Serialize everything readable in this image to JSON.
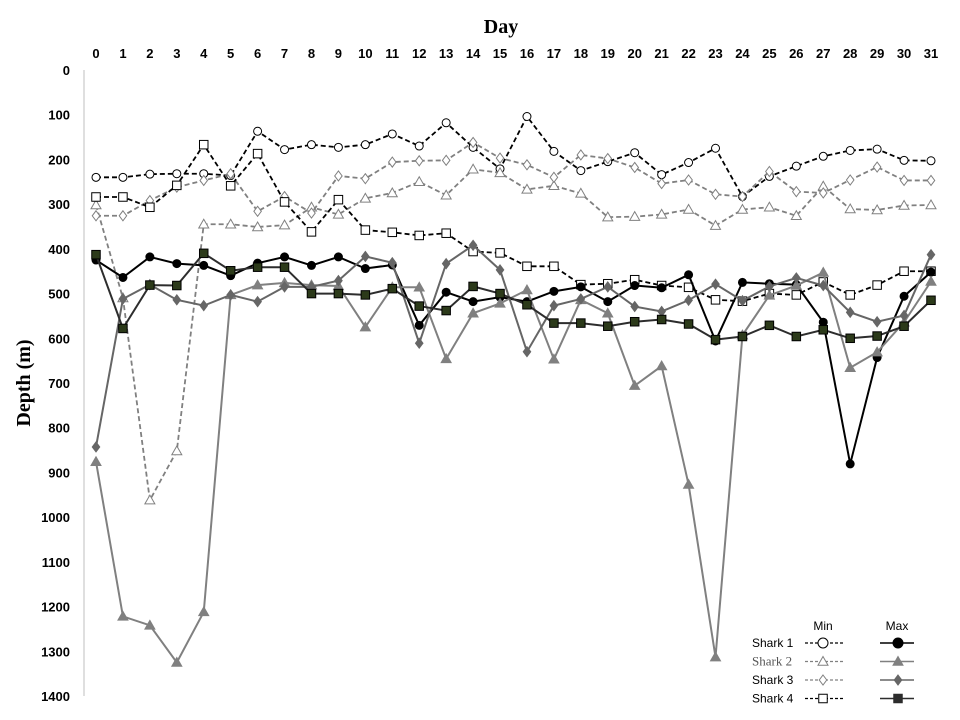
{
  "chart_data": {
    "type": "line",
    "title": "",
    "xlabel": "Day",
    "ylabel": "Depth (m)",
    "x": [
      0,
      1,
      2,
      3,
      4,
      5,
      6,
      7,
      8,
      9,
      10,
      11,
      12,
      13,
      14,
      15,
      16,
      17,
      18,
      19,
      20,
      21,
      22,
      23,
      24,
      25,
      26,
      27,
      28,
      29,
      30,
      31
    ],
    "xlim": [
      0,
      31
    ],
    "ylim": [
      0,
      1400
    ],
    "y_inverted": true,
    "y_ticks": [
      0,
      100,
      200,
      300,
      400,
      500,
      600,
      700,
      800,
      900,
      1000,
      1100,
      1200,
      1300,
      1400
    ],
    "grid": false,
    "legend_position": "bottom-right",
    "legend_headers": {
      "min": "Min",
      "max": "Max"
    },
    "series": [
      {
        "name": "Shark 1",
        "stat": "Min",
        "line": "dashed",
        "color": "#000000",
        "marker": "circle",
        "fill": "#ffffff",
        "values": [
          240,
          240,
          233,
          232,
          232,
          236,
          137,
          178,
          167,
          173,
          167,
          143,
          170,
          118,
          173,
          221,
          104,
          182,
          225,
          205,
          185,
          234,
          207,
          175,
          283,
          238,
          215,
          193,
          180,
          177,
          202,
          203
        ]
      },
      {
        "name": "Shark 2",
        "stat": "Min",
        "line": "dashed",
        "color": "#808080",
        "marker": "triangle",
        "fill": "#ffffff",
        "values": [
          302,
          510,
          962,
          852,
          345,
          345,
          351,
          347,
          307,
          323,
          287,
          275,
          250,
          280,
          222,
          230,
          267,
          259,
          276,
          329,
          328,
          323,
          312,
          348,
          312,
          307,
          326,
          260,
          311,
          313,
          303,
          302
        ]
      },
      {
        "name": "Shark 3",
        "stat": "Min",
        "line": "dashed",
        "color": "#808080",
        "marker": "diamond",
        "fill": "#ffffff",
        "values": [
          326,
          326,
          292,
          262,
          247,
          232,
          316,
          283,
          320,
          237,
          243,
          206,
          203,
          202,
          162,
          197,
          212,
          240,
          190,
          198,
          218,
          254,
          246,
          278,
          283,
          227,
          272,
          275,
          246,
          217,
          247,
          247
        ]
      },
      {
        "name": "Shark 4",
        "stat": "Min",
        "line": "dashed",
        "color": "#000000",
        "marker": "square",
        "fill": "#ffffff",
        "values": [
          284,
          284,
          307,
          258,
          167,
          259,
          187,
          295,
          362,
          290,
          358,
          363,
          370,
          365,
          406,
          409,
          439,
          439,
          480,
          478,
          469,
          482,
          486,
          514,
          517,
          500,
          503,
          474,
          503,
          481,
          450,
          450
        ]
      },
      {
        "name": "Shark 1",
        "stat": "Max",
        "line": "solid",
        "color": "#000000",
        "marker": "circle",
        "fill": "#000000",
        "values": [
          425,
          464,
          418,
          433,
          437,
          460,
          432,
          418,
          437,
          418,
          444,
          436,
          571,
          497,
          518,
          508,
          518,
          495,
          485,
          518,
          482,
          487,
          458,
          606,
          475,
          478,
          480,
          564,
          881,
          643,
          506,
          452
        ]
      },
      {
        "name": "Shark 2",
        "stat": "Max",
        "line": "solid",
        "color": "#808080",
        "marker": "triangle",
        "fill": "#808080",
        "values": [
          876,
          1222,
          1242,
          1325,
          1212,
          503,
          481,
          476,
          481,
          483,
          575,
          486,
          486,
          646,
          544,
          522,
          492,
          647,
          514,
          544,
          706,
          662,
          927,
          1313,
          593,
          504,
          482,
          453,
          666,
          631,
          564,
          473
        ]
      },
      {
        "name": "Shark 3",
        "stat": "Max",
        "line": "solid",
        "color": "#666666",
        "marker": "diamond",
        "fill": "#666666",
        "values": [
          843,
          512,
          480,
          514,
          527,
          503,
          518,
          485,
          485,
          471,
          417,
          431,
          611,
          433,
          392,
          447,
          630,
          527,
          512,
          485,
          529,
          540,
          515,
          479,
          516,
          484,
          465,
          482,
          542,
          563,
          549,
          413
        ]
      },
      {
        "name": "Shark 4",
        "stat": "Max",
        "line": "solid",
        "color": "#2d2d2d",
        "marker": "square",
        "fill": "#2c3a1a",
        "values": [
          413,
          578,
          481,
          482,
          410,
          449,
          441,
          441,
          500,
          500,
          503,
          489,
          528,
          538,
          484,
          500,
          525,
          566,
          566,
          573,
          563,
          558,
          568,
          603,
          596,
          571,
          596,
          581,
          600,
          595,
          573,
          515
        ]
      }
    ],
    "legend_entries": [
      {
        "label": "Shark 1",
        "min_series": 0,
        "max_series": 4
      },
      {
        "label": "Shark 2",
        "min_series": 1,
        "max_series": 5
      },
      {
        "label": "Shark 3",
        "min_series": 2,
        "max_series": 6
      },
      {
        "label": "Shark 4",
        "min_series": 3,
        "max_series": 7
      }
    ]
  }
}
